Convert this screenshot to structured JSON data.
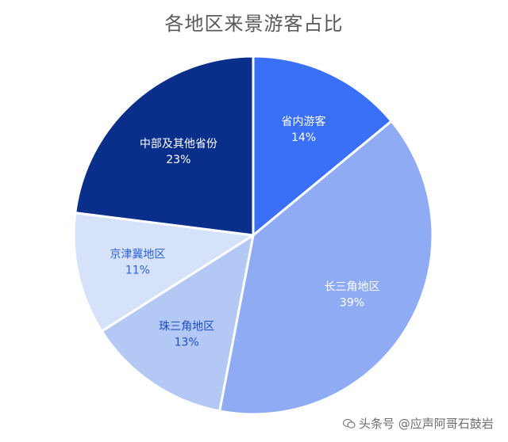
{
  "chart_data": {
    "type": "pie",
    "title": "各地区来景游客占比",
    "slices": [
      {
        "label": "省内游客",
        "value": 14,
        "value_label": "14%",
        "color": "#3a6ff7",
        "label_color": "#ffffff"
      },
      {
        "label": "长三角地区",
        "value": 39,
        "value_label": "39%",
        "color": "#8fabf3",
        "label_color": "#ffffff"
      },
      {
        "label": "珠三角地区",
        "value": 13,
        "value_label": "13%",
        "color": "#b4c8f5",
        "label_color": "#1c4fbf"
      },
      {
        "label": "京津冀地区",
        "value": 11,
        "value_label": "11%",
        "color": "#d6e1fa",
        "label_color": "#2b62d6"
      },
      {
        "label": "中部及其他省份",
        "value": 23,
        "value_label": "23%",
        "color": "#0a2f8a",
        "label_color": "#ffffff"
      }
    ],
    "start": "12 o'clock",
    "direction": "clockwise",
    "legend": "none"
  },
  "watermark": {
    "text": "头条号 @应声阿哥石鼓岩"
  }
}
